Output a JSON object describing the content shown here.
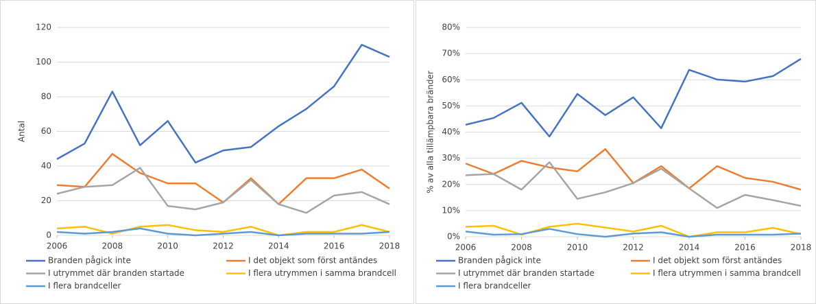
{
  "chart_data": [
    {
      "type": "line",
      "y_label": "Antal",
      "x": [
        2006,
        2007,
        2008,
        2009,
        2010,
        2011,
        2012,
        2013,
        2014,
        2015,
        2016,
        2017,
        2018
      ],
      "xlim": [
        2006,
        2018
      ],
      "xticks": [
        2006,
        2008,
        2010,
        2012,
        2014,
        2016,
        2018
      ],
      "ylim": [
        0,
        120
      ],
      "yticks": [
        0,
        20,
        40,
        60,
        80,
        100,
        120
      ],
      "grid": true,
      "series": [
        {
          "name": "Branden pågick inte",
          "color": "#4472c4",
          "values": [
            44,
            53,
            83,
            52,
            66,
            42,
            49,
            51,
            63,
            73,
            86,
            110,
            103
          ]
        },
        {
          "name": "I det objekt som först antändes",
          "color": "#ed7d31",
          "values": [
            29,
            28,
            47,
            36,
            30,
            30,
            19,
            33,
            18,
            33,
            33,
            38,
            27
          ]
        },
        {
          "name": "I utrymmet där branden startade",
          "color": "#a5a5a5",
          "values": [
            24,
            28,
            29,
            39,
            17,
            15,
            19,
            32,
            18,
            13,
            23,
            25,
            18
          ]
        },
        {
          "name": "I flera utrymmen i samma brandcell",
          "color": "#ffc000",
          "values": [
            4,
            5,
            1,
            5,
            6,
            3,
            2,
            5,
            0,
            2,
            2,
            6,
            2
          ]
        },
        {
          "name": "I flera brandceller",
          "color": "#5b9bd5",
          "values": [
            2,
            1,
            2,
            4,
            1,
            0,
            1,
            2,
            0,
            1,
            1,
            1,
            2
          ]
        }
      ]
    },
    {
      "type": "line",
      "y_label": "% av alla tillämpbara bränder",
      "x": [
        2006,
        2007,
        2008,
        2009,
        2010,
        2011,
        2012,
        2013,
        2014,
        2015,
        2016,
        2017,
        2018
      ],
      "xlim": [
        2006,
        2018
      ],
      "xticks": [
        2006,
        2008,
        2010,
        2012,
        2014,
        2016,
        2018
      ],
      "ylim": [
        0,
        80
      ],
      "yticks": [
        {
          "value": 0,
          "label": "0%"
        },
        {
          "value": 10,
          "label": "10%"
        },
        {
          "value": 20,
          "label": "20%"
        },
        {
          "value": 30,
          "label": "30%"
        },
        {
          "value": 40,
          "label": "40%"
        },
        {
          "value": 50,
          "label": "50%"
        },
        {
          "value": 60,
          "label": "60%"
        },
        {
          "value": 70,
          "label": "70%"
        },
        {
          "value": 80,
          "label": "80%"
        }
      ],
      "grid": true,
      "series": [
        {
          "name": "Branden pågick inte",
          "color": "#4472c4",
          "values": [
            42.8,
            45.4,
            51.2,
            38.3,
            54.6,
            46.5,
            53.3,
            41.5,
            63.8,
            60.1,
            59.3,
            61.4,
            68
          ]
        },
        {
          "name": "I det objekt som först antändes",
          "color": "#ed7d31",
          "values": [
            28,
            24,
            29,
            26.5,
            25,
            33.5,
            20.5,
            27,
            18.5,
            27,
            22.5,
            21,
            18
          ]
        },
        {
          "name": "I utrymmet där branden startade",
          "color": "#a5a5a5",
          "values": [
            23.5,
            24,
            18,
            28.5,
            14.5,
            17,
            20.5,
            26,
            18.5,
            11,
            16,
            14,
            11.8
          ]
        },
        {
          "name": "I flera utrymmen i samma brandcell",
          "color": "#ffc000",
          "values": [
            3.8,
            4.2,
            0.8,
            3.8,
            5,
            3.5,
            2,
            4.2,
            0,
            1.7,
            1.7,
            3.4,
            1
          ]
        },
        {
          "name": "I flera brandceller",
          "color": "#5b9bd5",
          "values": [
            2,
            0.8,
            1,
            3,
            1,
            0,
            1.2,
            1.7,
            0,
            0.8,
            0.8,
            0.8,
            1.2
          ]
        }
      ]
    }
  ]
}
